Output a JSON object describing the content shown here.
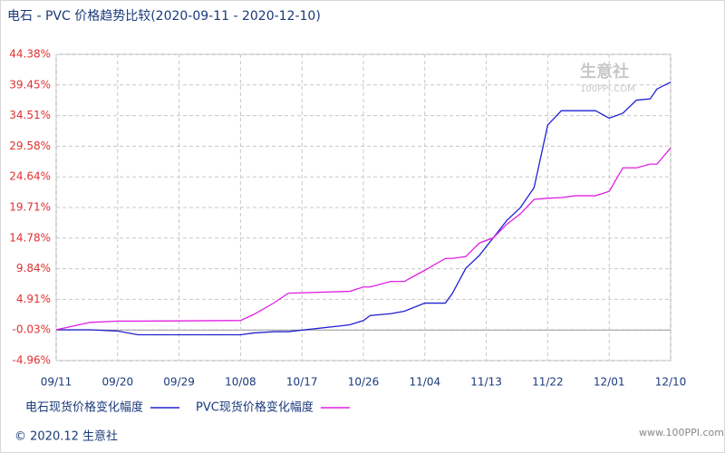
{
  "chart_data": {
    "type": "line",
    "title": "电石 - PVC 价格趋势比较(2020-09-11 - 2020-12-10)",
    "x": [
      "09/11",
      "09/16",
      "09/20",
      "09/23",
      "10/08",
      "10/10",
      "10/13",
      "10/15",
      "10/24",
      "10/26",
      "10/27",
      "10/30",
      "11/01",
      "11/04",
      "11/07",
      "11/08",
      "11/10",
      "11/12",
      "11/14",
      "11/16",
      "11/18",
      "11/20",
      "11/22",
      "11/24",
      "11/26",
      "11/29",
      "12/01",
      "12/03",
      "12/05",
      "12/07",
      "12/08",
      "12/10"
    ],
    "series": [
      {
        "name": "电石现货价格变化幅度",
        "color": "#2020d0",
        "values": [
          0,
          0,
          -0.2,
          -0.8,
          -0.8,
          -0.5,
          -0.3,
          -0.3,
          0.8,
          1.5,
          2.3,
          2.6,
          3.0,
          4.3,
          4.3,
          5.8,
          9.9,
          12,
          14.8,
          17.6,
          19.7,
          22.9,
          33,
          35.3,
          35.3,
          35.3,
          34.1,
          34.9,
          37,
          37.2,
          38.8,
          39.9
        ]
      },
      {
        "name": "PVC现货价格变化幅度",
        "color": "#e020e0",
        "values": [
          0,
          1.2,
          1.4,
          1.4,
          1.5,
          2.5,
          4.4,
          5.9,
          6.2,
          6.9,
          6.9,
          7.8,
          7.8,
          9.6,
          11.5,
          11.5,
          11.8,
          14,
          14.8,
          17,
          18.7,
          21,
          21.2,
          21.3,
          21.6,
          21.6,
          22.3,
          26.1,
          26.1,
          26.7,
          26.7,
          29.3
        ]
      }
    ],
    "xlim": [
      "09/11",
      "12/10"
    ],
    "xticks": [
      "09/11",
      "09/20",
      "09/29",
      "10/08",
      "10/17",
      "10/26",
      "11/04",
      "11/13",
      "11/22",
      "12/01",
      "12/10"
    ],
    "ylim": [
      -4.96,
      44.38
    ],
    "yticks": [
      {
        "value": -4.96,
        "label": "-4.96%"
      },
      {
        "value": -0.03,
        "label": "-0.03%"
      },
      {
        "value": 4.91,
        "label": "4.91%"
      },
      {
        "value": 9.84,
        "label": "9.84%"
      },
      {
        "value": 14.78,
        "label": "14.78%"
      },
      {
        "value": 19.71,
        "label": "19.71%"
      },
      {
        "value": 24.64,
        "label": "24.64%"
      },
      {
        "value": 29.58,
        "label": "29.58%"
      },
      {
        "value": 34.51,
        "label": "34.51%"
      },
      {
        "value": 39.45,
        "label": "39.45%"
      },
      {
        "value": 44.38,
        "label": "44.38%"
      }
    ],
    "grid": true,
    "footer": "© 2020.12 生意社",
    "logo": "生意社",
    "logo_url": "100PPI.COM",
    "watermark": "www.100PPI.com"
  }
}
